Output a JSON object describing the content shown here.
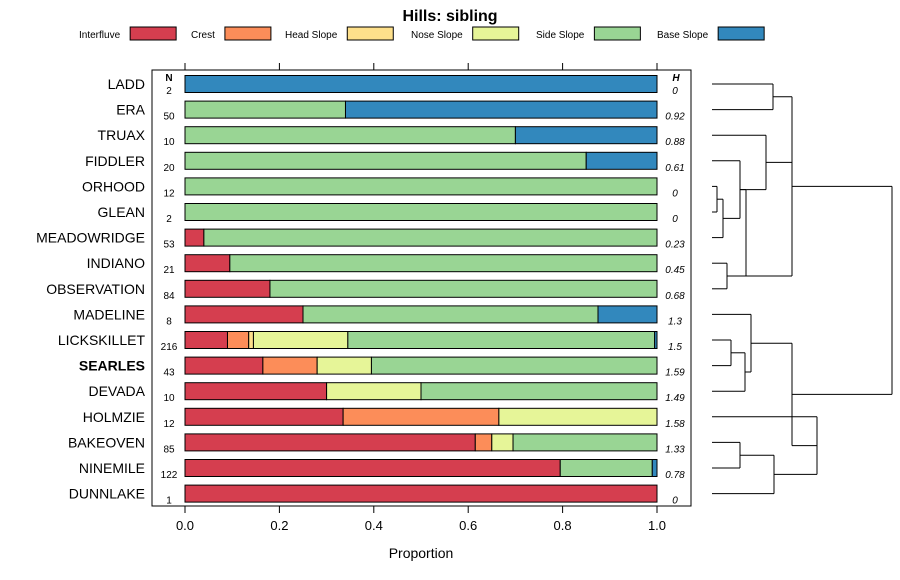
{
  "chart_data": {
    "type": "bar",
    "orientation": "horizontal-stacked",
    "title": "Hills: sibling",
    "xlabel": "Proportion",
    "xlim": [
      0,
      1
    ],
    "xticks": [
      "0.0",
      "0.2",
      "0.4",
      "0.6",
      "0.8",
      "1.0"
    ],
    "n_header": "N",
    "h_header": "H",
    "legend": [
      {
        "name": "Interfluve",
        "color": "#d53e4f"
      },
      {
        "name": "Crest",
        "color": "#fc8d59"
      },
      {
        "name": "Head Slope",
        "color": "#fee08b"
      },
      {
        "name": "Nose Slope",
        "color": "#e6f598"
      },
      {
        "name": "Side Slope",
        "color": "#99d594"
      },
      {
        "name": "Base Slope",
        "color": "#3288bd"
      }
    ],
    "highlight": "SEARLES",
    "rows": [
      {
        "name": "LADD",
        "n": "2",
        "h": "0",
        "values": [
          0,
          0,
          0,
          0,
          0,
          1.0
        ]
      },
      {
        "name": "ERA",
        "n": "50",
        "h": "0.92",
        "values": [
          0,
          0,
          0,
          0,
          0.34,
          0.66
        ]
      },
      {
        "name": "TRUAX",
        "n": "10",
        "h": "0.88",
        "values": [
          0,
          0,
          0,
          0,
          0.7,
          0.3
        ]
      },
      {
        "name": "FIDDLER",
        "n": "20",
        "h": "0.61",
        "values": [
          0,
          0,
          0,
          0,
          0.85,
          0.15
        ]
      },
      {
        "name": "ORHOOD",
        "n": "12",
        "h": "0",
        "values": [
          0,
          0,
          0,
          0,
          1.0,
          0
        ]
      },
      {
        "name": "GLEAN",
        "n": "2",
        "h": "0",
        "values": [
          0,
          0,
          0,
          0,
          1.0,
          0
        ]
      },
      {
        "name": "MEADOWRIDGE",
        "n": "53",
        "h": "0.23",
        "values": [
          0.04,
          0,
          0,
          0,
          0.96,
          0
        ]
      },
      {
        "name": "INDIANO",
        "n": "21",
        "h": "0.45",
        "values": [
          0.095,
          0,
          0,
          0,
          0.905,
          0
        ]
      },
      {
        "name": "OBSERVATION",
        "n": "84",
        "h": "0.68",
        "values": [
          0.18,
          0,
          0,
          0,
          0.82,
          0
        ]
      },
      {
        "name": "MADELINE",
        "n": "8",
        "h": "1.3",
        "values": [
          0.25,
          0,
          0,
          0,
          0.625,
          0.125
        ]
      },
      {
        "name": "LICKSKILLET",
        "n": "216",
        "h": "1.5",
        "values": [
          0.09,
          0.045,
          0.01,
          0.2,
          0.65,
          0.005
        ]
      },
      {
        "name": "SEARLES",
        "n": "43",
        "h": "1.59",
        "values": [
          0.165,
          0.115,
          0,
          0.115,
          0.605,
          0
        ]
      },
      {
        "name": "DEVADA",
        "n": "10",
        "h": "1.49",
        "values": [
          0.3,
          0,
          0,
          0.2,
          0.5,
          0
        ]
      },
      {
        "name": "HOLMZIE",
        "n": "12",
        "h": "1.58",
        "values": [
          0.335,
          0.33,
          0,
          0.335,
          0,
          0
        ]
      },
      {
        "name": "BAKEOVEN",
        "n": "85",
        "h": "1.33",
        "values": [
          0.615,
          0.035,
          0,
          0.045,
          0.305,
          0
        ]
      },
      {
        "name": "NINEMILE",
        "n": "122",
        "h": "0.78",
        "values": [
          0.795,
          0,
          0,
          0,
          0.195,
          0.01
        ]
      },
      {
        "name": "DUNNLAKE",
        "n": "1",
        "h": "0",
        "values": [
          1.0,
          0,
          0,
          0,
          0,
          0
        ]
      }
    ]
  }
}
